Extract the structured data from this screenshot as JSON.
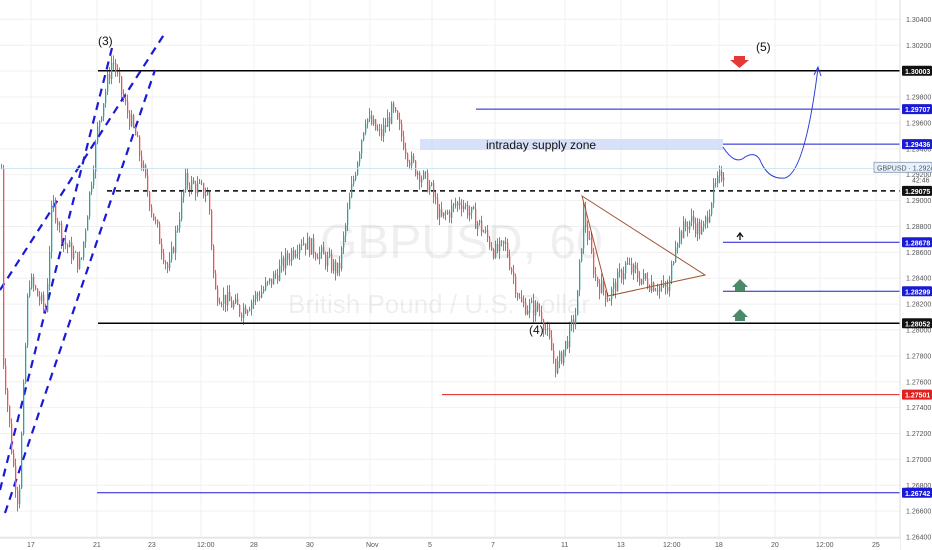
{
  "chart_data": {
    "type": "candlestick",
    "symbol": "GBPUSD",
    "interval": "60",
    "watermark": {
      "symbol": "GBPUSD, 60",
      "description": "British Pound / U.S. Dollar"
    },
    "ylim": [
      1.263,
      1.3055
    ],
    "y_ticks": [
      "1.30400",
      "1.30200",
      "1.30000",
      "1.29800",
      "1.29600",
      "1.29400",
      "1.29200",
      "1.29000",
      "1.28800",
      "1.28600",
      "1.28400",
      "1.28200",
      "1.28000",
      "1.27800",
      "1.27600",
      "1.27400",
      "1.27200",
      "1.27000",
      "1.26800",
      "1.26600",
      "1.26400"
    ],
    "x_ticks": [
      "17",
      "21",
      "23",
      "12:00",
      "28",
      "30",
      "Nov",
      "5",
      "7",
      "11",
      "13",
      "12:00",
      "18",
      "20",
      "12:00",
      "25"
    ],
    "levels": [
      {
        "price": 1.30003,
        "label": "1.30003",
        "color": "#000000",
        "style": "solid"
      },
      {
        "price": 1.29707,
        "label": "1.29707",
        "color": "#1a1ad6",
        "style": "solid"
      },
      {
        "price": 1.29436,
        "label": "1.29436",
        "color": "#1a1ad6",
        "style": "solid"
      },
      {
        "price": 1.29075,
        "label": "1.29075",
        "color": "#000000",
        "style": "dashed"
      },
      {
        "price": 1.28678,
        "label": "1.28678",
        "color": "#1a1ad6",
        "style": "solid"
      },
      {
        "price": 1.28299,
        "label": "1.28299",
        "color": "#1a1ad6",
        "style": "solid"
      },
      {
        "price": 1.28052,
        "label": "1.28052",
        "color": "#000000",
        "style": "solid"
      },
      {
        "price": 1.27501,
        "label": "1.27501",
        "color": "#e02020",
        "style": "solid"
      },
      {
        "price": 1.26742,
        "label": "1.26742",
        "color": "#1a1ad6",
        "style": "solid"
      }
    ],
    "last_price": {
      "label": "GBPUSD",
      "value": "1.29249",
      "countdown": "42:46"
    },
    "annotations": {
      "supply_zone": "intraday supply zone",
      "wave_3": "(3)",
      "wave_4": "(4)",
      "wave_5": "(5)"
    },
    "grid": true
  },
  "colors": {
    "up": "#26a69a",
    "down": "#ef5350",
    "wick": "#333333",
    "blue": "#1a1ad6"
  }
}
